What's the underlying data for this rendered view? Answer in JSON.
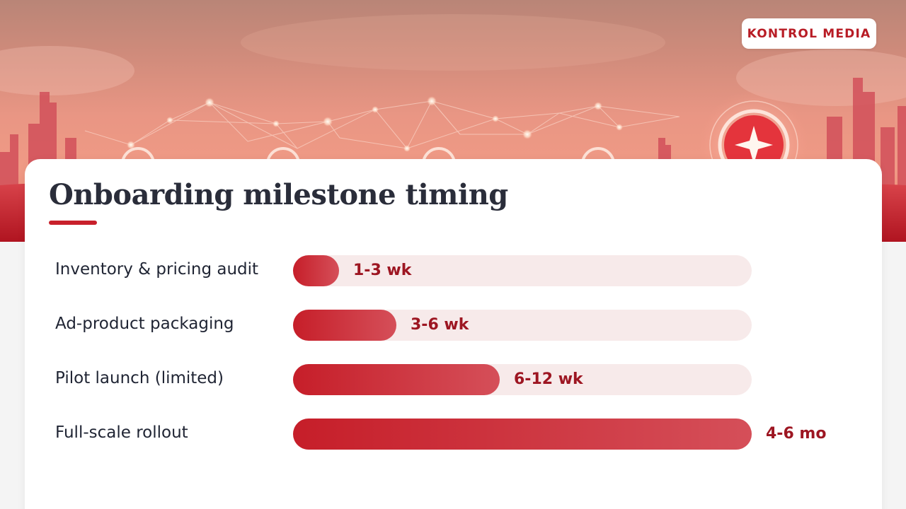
{
  "brand": {
    "name": "KONTROL MEDIA"
  },
  "slide": {
    "title": "Onboarding milestone timing"
  },
  "colors": {
    "accent": "#c8202b",
    "bar_start": "#c61e29",
    "bar_end": "#d54f59",
    "track": "#f7eaea",
    "value_text": "#9d1622",
    "label_text": "#1f2433"
  },
  "chart_data": {
    "type": "bar",
    "orientation": "horizontal",
    "title": "Onboarding milestone timing",
    "xlabel": "",
    "ylabel": "",
    "grid": false,
    "legend": "none",
    "categories": [
      "Inventory & pricing audit",
      "Ad-product packaging",
      "Pilot launch (limited)",
      "Full-scale rollout"
    ],
    "values": [
      0.1,
      0.225,
      0.45,
      1.0
    ],
    "value_scale": "fraction of the longest bar",
    "data_labels": [
      "1-3 wk",
      "3-6 wk",
      "6-12 wk",
      "4-6 mo"
    ]
  }
}
